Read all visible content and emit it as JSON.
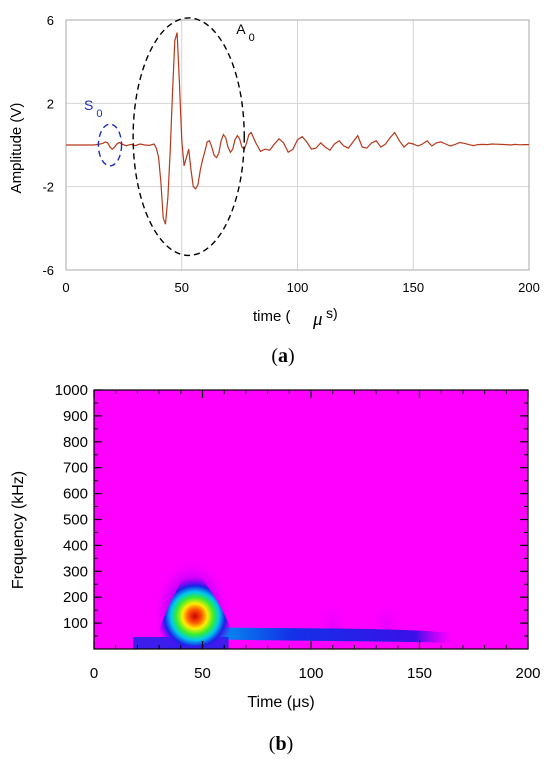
{
  "chart_data": [
    {
      "panel": "a",
      "type": "line",
      "xlabel_parts": [
        "time (",
        "μ",
        "s)"
      ],
      "ylabel": "Amplitude (V)",
      "xlim": [
        0,
        200
      ],
      "ylim": [
        -6,
        6
      ],
      "xticks": [
        "0",
        "50",
        "100",
        "150",
        "200"
      ],
      "yticks": [
        "6",
        "2",
        "-2",
        "-6"
      ],
      "ytick_values": [
        6,
        2,
        -2,
        -6
      ],
      "grid": true,
      "line_color": "#b5391c",
      "annotations": [
        {
          "text": "S",
          "sub": "0",
          "color": "#1b2fb5",
          "ellipse_center": [
            19,
            0
          ],
          "ellipse_radii": [
            5,
            1
          ]
        },
        {
          "text": "A",
          "sub": "0",
          "color": "#000000",
          "ellipse_center": [
            53,
            0.4
          ],
          "ellipse_radii": [
            24,
            5.7
          ]
        }
      ],
      "series": [
        {
          "x": [
            0,
            2,
            4,
            6,
            8,
            10,
            12,
            14,
            16,
            17,
            18,
            19,
            20,
            21,
            22,
            23,
            24,
            26,
            28,
            30,
            32,
            34,
            36,
            38,
            39,
            40,
            41,
            42,
            43,
            44,
            45,
            46,
            47,
            48,
            49,
            50,
            51,
            52,
            53,
            54,
            55,
            56,
            57,
            58,
            59,
            60,
            61,
            62,
            63,
            64,
            65,
            66,
            67,
            68,
            69,
            70,
            71,
            72,
            73,
            74,
            75,
            76,
            77,
            78,
            79,
            80,
            82,
            84,
            86,
            88,
            90,
            92,
            94,
            96,
            98,
            100,
            102,
            104,
            106,
            108,
            110,
            112,
            114,
            116,
            118,
            120,
            122,
            124,
            126,
            128,
            130,
            132,
            134,
            136,
            138,
            140,
            142,
            144,
            146,
            148,
            150,
            152,
            154,
            156,
            158,
            160,
            162,
            164,
            166,
            168,
            170,
            172,
            174,
            176,
            178,
            180,
            182,
            184,
            186,
            188,
            190,
            192,
            194,
            196,
            198,
            200
          ],
          "y": [
            0,
            0,
            0,
            0,
            0,
            0,
            0,
            0.03,
            0.08,
            0.15,
            0.1,
            -0.1,
            -0.2,
            -0.1,
            0.05,
            0.12,
            0.06,
            -0.04,
            0.03,
            -0.03,
            0.05,
            0,
            -0.02,
            0.05,
            -0.15,
            -0.6,
            -1.8,
            -3.5,
            -3.8,
            -2.5,
            -0.3,
            2.5,
            5.0,
            5.4,
            3.0,
            0.2,
            -1.0,
            -0.6,
            -0.2,
            -1.2,
            -2.0,
            -2.1,
            -1.9,
            -1.2,
            -0.7,
            -0.3,
            0.15,
            0.2,
            -0.1,
            -0.5,
            -0.6,
            -0.4,
            0.2,
            0.5,
            0.35,
            -0.1,
            -0.35,
            -0.2,
            0.25,
            0.45,
            0.3,
            -0.1,
            -0.2,
            0.1,
            0.5,
            0.6,
            0.1,
            -0.3,
            -0.2,
            -0.25,
            0.05,
            0.3,
            0.1,
            -0.35,
            -0.2,
            0.25,
            0.4,
            0.15,
            -0.2,
            -0.15,
            0.1,
            -0.1,
            -0.25,
            0.05,
            0.2,
            -0.05,
            -0.15,
            0.15,
            0.45,
            -0.1,
            -0.15,
            0.1,
            0.2,
            -0.1,
            0.05,
            0.35,
            0.6,
            0.2,
            -0.1,
            0.1,
            0.05,
            -0.05,
            0.05,
            0.2,
            -0.05,
            0.1,
            0.15,
            0.05,
            -0.05,
            0.02,
            0.12,
            0.08,
            0.02,
            -0.03,
            0.02,
            0.03,
            0.02,
            0.05,
            0.04,
            0.03,
            0.02,
            0,
            0.03,
            0.01,
            0.02,
            0.02
          ]
        }
      ]
    },
    {
      "panel": "b",
      "type": "heatmap",
      "xlabel": "Time (μs)",
      "ylabel": "Frequency (kHz)",
      "xlim": [
        0,
        200
      ],
      "ylim": [
        0,
        1000
      ],
      "xticks": [
        "0",
        "50",
        "100",
        "150",
        "200"
      ],
      "yticks": [
        "100",
        "200",
        "300",
        "400",
        "500",
        "600",
        "700",
        "800",
        "900",
        "1000"
      ],
      "ytick_values": [
        100,
        200,
        300,
        400,
        500,
        600,
        700,
        800,
        900,
        1000
      ],
      "background_color": "#ff00ff",
      "energy_peaks": [
        {
          "time": 47,
          "frequency": 90,
          "intensity": 1.0
        },
        {
          "time": 110,
          "frequency": 60,
          "intensity": 0.3
        },
        {
          "time": 135,
          "frequency": 60,
          "intensity": 0.35
        }
      ]
    }
  ],
  "captions": {
    "a": {
      "open": "(",
      "letter": "a",
      "close": ")"
    },
    "b": {
      "open": "(",
      "letter": "b",
      "close": ")"
    }
  }
}
